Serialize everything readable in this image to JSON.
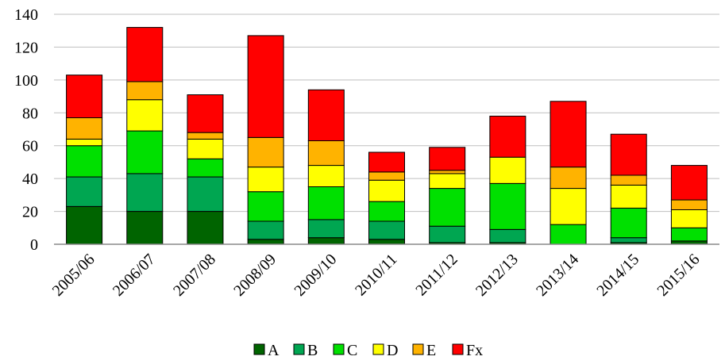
{
  "chart_data": {
    "type": "bar",
    "stacked": true,
    "categories": [
      "2005/06",
      "2006/07",
      "2007/08",
      "2008/09",
      "2009/10",
      "2010/11",
      "2011/12",
      "2012/13",
      "2013/14",
      "2014/15",
      "2015/16"
    ],
    "series": [
      {
        "name": "A",
        "color": "#006400",
        "values": [
          23,
          20,
          20,
          3,
          4,
          3,
          1,
          1,
          0,
          1,
          2
        ]
      },
      {
        "name": "B",
        "color": "#00A651",
        "values": [
          18,
          23,
          21,
          11,
          11,
          11,
          10,
          8,
          0,
          3,
          0
        ]
      },
      {
        "name": "C",
        "color": "#00E000",
        "values": [
          19,
          26,
          11,
          18,
          20,
          12,
          23,
          28,
          12,
          18,
          8
        ]
      },
      {
        "name": "D",
        "color": "#FFFF00",
        "values": [
          4,
          19,
          12,
          15,
          13,
          13,
          9,
          16,
          22,
          14,
          11
        ]
      },
      {
        "name": "E",
        "color": "#FFB300",
        "values": [
          13,
          11,
          4,
          18,
          15,
          5,
          2,
          0,
          13,
          6,
          6
        ]
      },
      {
        "name": "Fx",
        "color": "#FF0000",
        "values": [
          26,
          33,
          23,
          62,
          31,
          12,
          14,
          25,
          40,
          25,
          21
        ]
      }
    ],
    "y_ticks": [
      "0",
      "20",
      "40",
      "60",
      "80",
      "100",
      "120",
      "140"
    ],
    "ylim": [
      0,
      140
    ],
    "grid": true,
    "legend_position": "bottom",
    "title": "",
    "xlabel": "",
    "ylabel": ""
  }
}
